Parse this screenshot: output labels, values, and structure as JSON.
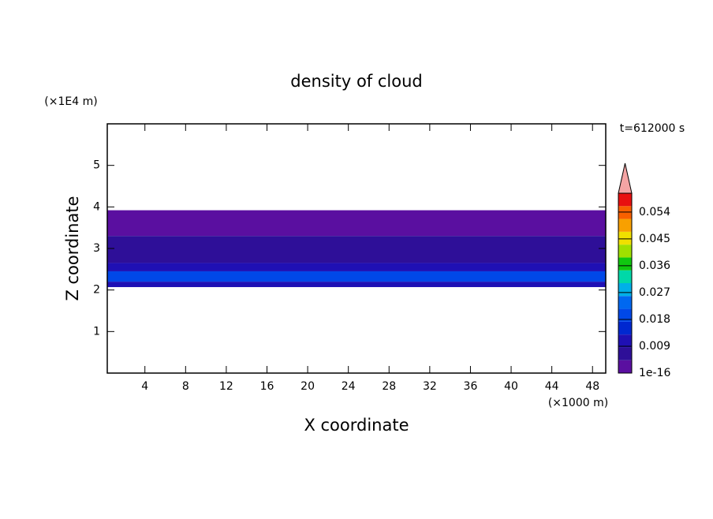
{
  "chart_data": {
    "type": "contour",
    "title": "density of cloud",
    "x_label": "X coordinate",
    "x_unit": "(×1000 m)",
    "y_label": "Z coordinate",
    "y_unit": "(×1E4 m)",
    "annotation": "t=612000 s",
    "xlim": [
      0.3,
      49.3
    ],
    "xticks": [
      4,
      8,
      12,
      16,
      20,
      24,
      28,
      32,
      36,
      40,
      44,
      48
    ],
    "ylim": [
      0,
      6
    ],
    "yticks": [
      1,
      2,
      3,
      4,
      5
    ],
    "bands": [
      {
        "z": [
          3.3,
          3.92
        ],
        "value": 1e-16
      },
      {
        "z": [
          2.65,
          3.3
        ],
        "value": 0.0045
      },
      {
        "z": [
          2.45,
          2.65
        ],
        "value": 0.009
      },
      {
        "z": [
          2.2,
          2.45
        ],
        "value": 0.018
      },
      {
        "z": [
          2.07,
          2.2
        ],
        "value": 0.009
      }
    ],
    "colorbar": {
      "clim": [
        0,
        0.0603
      ],
      "colors": [
        "#5a0fa0",
        "#2e0f98",
        "#1f10b4",
        "#0028d0",
        "#0048e8",
        "#0068f0",
        "#00b0e8",
        "#00d8a8",
        "#10c810",
        "#a0e000",
        "#f0e000",
        "#f8a000",
        "#f86000",
        "#e81010"
      ],
      "extend_color": "#f4a4a4",
      "ticks": [
        1e-16,
        0.009,
        0.018,
        0.027,
        0.036,
        0.045,
        0.054
      ]
    }
  }
}
